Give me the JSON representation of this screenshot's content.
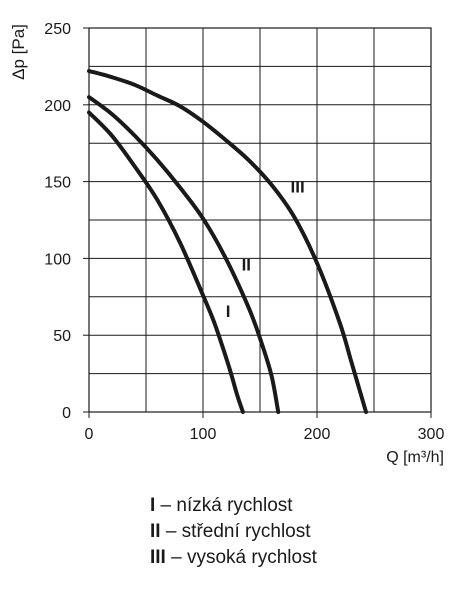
{
  "chart_data": {
    "type": "line",
    "ylabel": "Δp [Pa]",
    "xlabel": "Q [m³/h]",
    "xlim": [
      0,
      300
    ],
    "ylim": [
      0,
      250
    ],
    "x_ticks": [
      "0",
      "100",
      "200",
      "300"
    ],
    "y_ticks": [
      "0",
      "50",
      "100",
      "150",
      "200",
      "250"
    ],
    "grid": true,
    "x_grid_step": 50,
    "y_grid_step": 25,
    "line_color": "#1a1a1a",
    "series": [
      {
        "name": "I",
        "x": [
          0,
          20,
          40,
          60,
          80,
          100,
          110,
          120,
          125,
          130,
          135
        ],
        "y": [
          195,
          180,
          160,
          138,
          110,
          76,
          58,
          36,
          24,
          11,
          0
        ]
      },
      {
        "name": "II",
        "x": [
          0,
          20,
          40,
          60,
          80,
          100,
          120,
          140,
          150,
          160,
          166
        ],
        "y": [
          205,
          194,
          180,
          164,
          146,
          126,
          100,
          68,
          48,
          24,
          0
        ]
      },
      {
        "name": "III",
        "x": [
          0,
          20,
          40,
          60,
          80,
          100,
          120,
          140,
          160,
          180,
          200,
          220,
          230,
          243
        ],
        "y": [
          222,
          218,
          213,
          206,
          199,
          189,
          177,
          164,
          148,
          127,
          97,
          58,
          33,
          0
        ]
      }
    ],
    "curve_labels": [
      {
        "text": "I",
        "x": 122,
        "y": 62
      },
      {
        "text": "II",
        "x": 138,
        "y": 92
      },
      {
        "text": "III",
        "x": 183,
        "y": 143
      }
    ]
  },
  "legend": [
    {
      "key": "I",
      "text": " – nízká rychlost"
    },
    {
      "key": "II",
      "text": " – střední rychlost"
    },
    {
      "key": "III",
      "text": " – vysoká rychlost"
    }
  ]
}
